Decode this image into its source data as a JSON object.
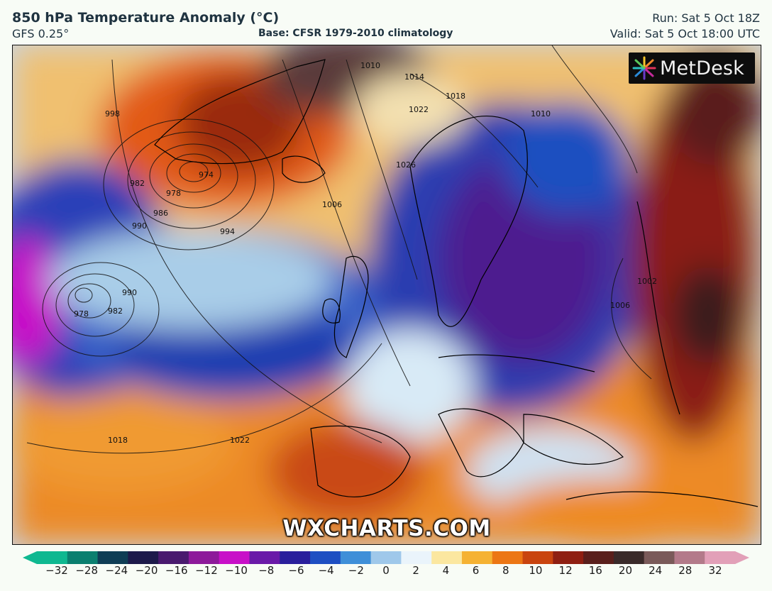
{
  "header": {
    "title": "850 hPa Temperature Anomaly (°C)",
    "model": "GFS 0.25°",
    "base": "Base: CFSR 1979-2010 climatology",
    "run": "Run: Sat 5 Oct 18Z",
    "valid": "Valid: Sat 5 Oct 18:00 UTC"
  },
  "branding": {
    "logo_text": "MetDesk",
    "watermark": "WXCHARTS.COM"
  },
  "isobar_labels": [
    {
      "text": "1010"
    },
    {
      "text": "1014"
    },
    {
      "text": "1018"
    },
    {
      "text": "1022"
    },
    {
      "text": "1026"
    },
    {
      "text": "974"
    },
    {
      "text": "978"
    },
    {
      "text": "982"
    },
    {
      "text": "986"
    },
    {
      "text": "990"
    },
    {
      "text": "994"
    },
    {
      "text": "998"
    },
    {
      "text": "1006"
    },
    {
      "text": "1002"
    },
    {
      "text": "978"
    },
    {
      "text": "982"
    },
    {
      "text": "990"
    },
    {
      "text": "1018"
    },
    {
      "text": "1022"
    },
    {
      "text": "1006"
    },
    {
      "text": "1010"
    }
  ],
  "colorbar": {
    "ticks": [
      "−32",
      "−28",
      "−24",
      "−20",
      "−16",
      "−12",
      "−10",
      "−8",
      "−6",
      "−4",
      "−2",
      "0",
      "2",
      "4",
      "6",
      "8",
      "10",
      "12",
      "16",
      "20",
      "24",
      "28",
      "32"
    ],
    "colors": [
      "#0fb890",
      "#0b7f6f",
      "#0f3d55",
      "#1d1a4a",
      "#4a1a6e",
      "#8d1a9a",
      "#c810c8",
      "#6a1aa8",
      "#2a1f9c",
      "#1e4fc2",
      "#3f8fd8",
      "#9fc8ea",
      "#eaf4fb",
      "#fbe7a0",
      "#f5b233",
      "#ec7614",
      "#c9440f",
      "#8f1f12",
      "#5a1f1c",
      "#3a2a2a",
      "#7a5a5a",
      "#b37a8a",
      "#e2a0b8"
    ]
  },
  "colors": {
    "cold_core": "#4d1a8f",
    "deep_blue": "#1f3cb0",
    "warm": "#e87a1a",
    "hot": "#8a1a12",
    "land_outline": "#000000"
  }
}
